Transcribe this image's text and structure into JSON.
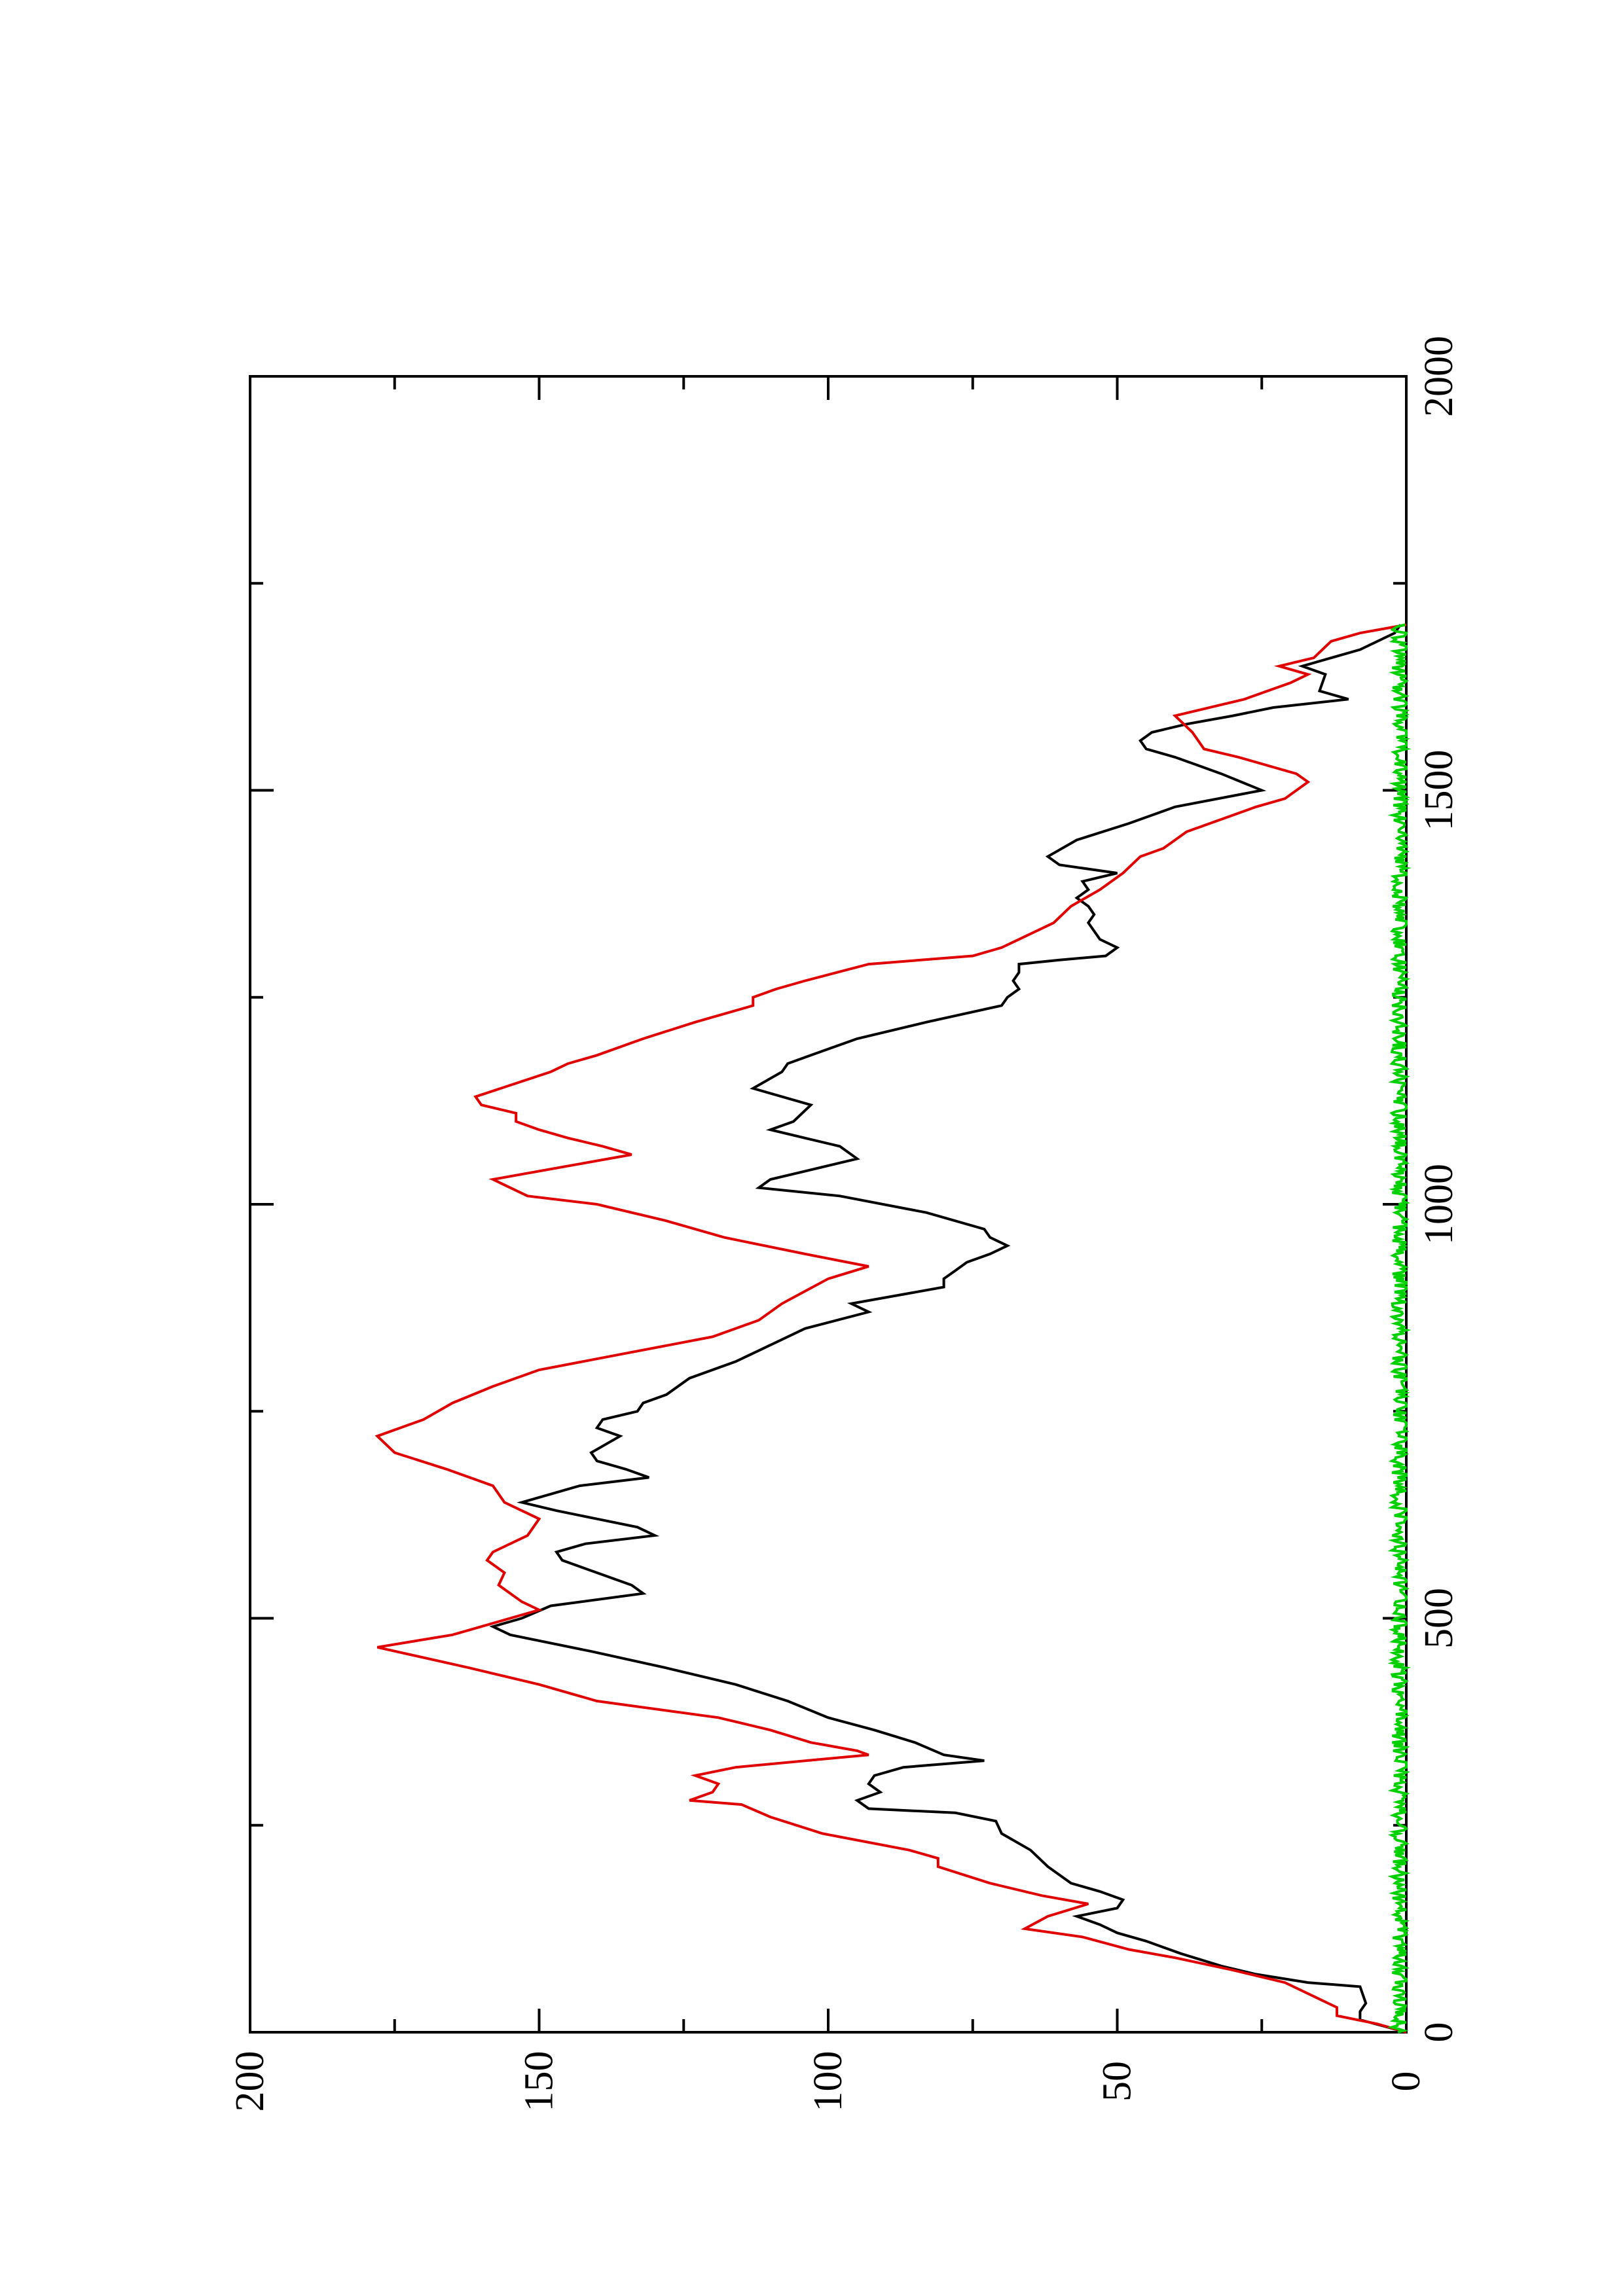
{
  "chart_data": {
    "type": "line",
    "orientation": "page rotated 90 degrees counter-clockwise",
    "title": "",
    "xlabel": "",
    "ylabel": "",
    "xlim": [
      0,
      2000
    ],
    "ylim": [
      0,
      200
    ],
    "x_ticks": [
      0,
      500,
      1000,
      1500,
      2000
    ],
    "x_tick_labels": [
      "0",
      "500",
      "1000",
      "1500",
      "2000"
    ],
    "y_ticks": [
      0,
      50,
      100,
      150,
      200
    ],
    "y_tick_labels": [
      "0",
      "50",
      "100",
      "150",
      "200"
    ],
    "grid": false,
    "legend": "none",
    "series": [
      {
        "color": "#000000",
        "points": [
          [
            0,
            0
          ],
          [
            15,
            8
          ],
          [
            25,
            8
          ],
          [
            35,
            7
          ],
          [
            55,
            8
          ],
          [
            60,
            17
          ],
          [
            70,
            26
          ],
          [
            80,
            32
          ],
          [
            95,
            39
          ],
          [
            110,
            45
          ],
          [
            120,
            50
          ],
          [
            130,
            53
          ],
          [
            140,
            57
          ],
          [
            150,
            50
          ],
          [
            160,
            49
          ],
          [
            170,
            53
          ],
          [
            180,
            58
          ],
          [
            200,
            62
          ],
          [
            220,
            65
          ],
          [
            240,
            70
          ],
          [
            255,
            71
          ],
          [
            265,
            78
          ],
          [
            270,
            93
          ],
          [
            280,
            95
          ],
          [
            290,
            91
          ],
          [
            300,
            93
          ],
          [
            310,
            92
          ],
          [
            320,
            87
          ],
          [
            328,
            73
          ],
          [
            335,
            80
          ],
          [
            350,
            85
          ],
          [
            365,
            92
          ],
          [
            380,
            100
          ],
          [
            400,
            107
          ],
          [
            420,
            116
          ],
          [
            440,
            128
          ],
          [
            460,
            141
          ],
          [
            480,
            155
          ],
          [
            490,
            158
          ],
          [
            500,
            153
          ],
          [
            515,
            148
          ],
          [
            530,
            132
          ],
          [
            540,
            134
          ],
          [
            550,
            138
          ],
          [
            560,
            142
          ],
          [
            570,
            146
          ],
          [
            580,
            147
          ],
          [
            590,
            142
          ],
          [
            600,
            130
          ],
          [
            610,
            133
          ],
          [
            620,
            140
          ],
          [
            630,
            147
          ],
          [
            640,
            153
          ],
          [
            650,
            148
          ],
          [
            660,
            143
          ],
          [
            670,
            131
          ],
          [
            680,
            135
          ],
          [
            690,
            140
          ],
          [
            700,
            141
          ],
          [
            720,
            136
          ],
          [
            730,
            140
          ],
          [
            740,
            139
          ],
          [
            750,
            133
          ],
          [
            760,
            132
          ],
          [
            770,
            128
          ],
          [
            790,
            124
          ],
          [
            810,
            116
          ],
          [
            830,
            110
          ],
          [
            850,
            104
          ],
          [
            870,
            93
          ],
          [
            880,
            96
          ],
          [
            900,
            80
          ],
          [
            910,
            80
          ],
          [
            920,
            78
          ],
          [
            930,
            76
          ],
          [
            940,
            72
          ],
          [
            950,
            69
          ],
          [
            960,
            72
          ],
          [
            970,
            73
          ],
          [
            990,
            83
          ],
          [
            1010,
            98
          ],
          [
            1020,
            112
          ],
          [
            1030,
            110
          ],
          [
            1040,
            104
          ],
          [
            1055,
            95
          ],
          [
            1070,
            98
          ],
          [
            1080,
            104
          ],
          [
            1090,
            110
          ],
          [
            1100,
            106
          ],
          [
            1120,
            103
          ],
          [
            1140,
            113
          ],
          [
            1160,
            108
          ],
          [
            1170,
            107
          ],
          [
            1180,
            103
          ],
          [
            1200,
            95
          ],
          [
            1220,
            83
          ],
          [
            1240,
            70
          ],
          [
            1250,
            69
          ],
          [
            1260,
            67
          ],
          [
            1270,
            68
          ],
          [
            1280,
            67
          ],
          [
            1290,
            67
          ],
          [
            1295,
            60
          ],
          [
            1300,
            52
          ],
          [
            1310,
            50
          ],
          [
            1320,
            53
          ],
          [
            1330,
            54
          ],
          [
            1340,
            55
          ],
          [
            1350,
            54
          ],
          [
            1360,
            55
          ],
          [
            1370,
            57
          ],
          [
            1380,
            55
          ],
          [
            1390,
            56
          ],
          [
            1400,
            50
          ],
          [
            1410,
            60
          ],
          [
            1420,
            62
          ],
          [
            1440,
            57
          ],
          [
            1460,
            48
          ],
          [
            1480,
            40
          ],
          [
            1500,
            25
          ],
          [
            1520,
            32
          ],
          [
            1530,
            36
          ],
          [
            1540,
            40
          ],
          [
            1550,
            45
          ],
          [
            1560,
            46
          ],
          [
            1570,
            44
          ],
          [
            1580,
            38
          ],
          [
            1590,
            30
          ],
          [
            1600,
            23
          ],
          [
            1610,
            10
          ],
          [
            1620,
            15
          ],
          [
            1640,
            14
          ],
          [
            1650,
            18
          ],
          [
            1670,
            8
          ],
          [
            1690,
            2
          ],
          [
            1700,
            1
          ]
        ]
      },
      {
        "color": "#e00000",
        "points": [
          [
            0,
            0
          ],
          [
            10,
            5
          ],
          [
            20,
            12
          ],
          [
            30,
            12
          ],
          [
            40,
            15
          ],
          [
            60,
            21
          ],
          [
            75,
            30
          ],
          [
            90,
            40
          ],
          [
            100,
            48
          ],
          [
            115,
            56
          ],
          [
            125,
            66
          ],
          [
            140,
            62
          ],
          [
            155,
            55
          ],
          [
            165,
            63
          ],
          [
            180,
            72
          ],
          [
            200,
            81
          ],
          [
            210,
            81
          ],
          [
            220,
            86
          ],
          [
            240,
            101
          ],
          [
            260,
            110
          ],
          [
            275,
            115
          ],
          [
            280,
            124
          ],
          [
            290,
            120
          ],
          [
            300,
            119
          ],
          [
            310,
            123
          ],
          [
            320,
            116
          ],
          [
            335,
            93
          ],
          [
            340,
            95
          ],
          [
            350,
            103
          ],
          [
            365,
            110
          ],
          [
            380,
            119
          ],
          [
            400,
            140
          ],
          [
            420,
            150
          ],
          [
            440,
            162
          ],
          [
            465,
            178
          ],
          [
            480,
            165
          ],
          [
            490,
            160
          ],
          [
            510,
            150
          ],
          [
            520,
            153
          ],
          [
            540,
            157
          ],
          [
            555,
            156
          ],
          [
            570,
            159
          ],
          [
            580,
            158
          ],
          [
            600,
            152
          ],
          [
            620,
            150
          ],
          [
            640,
            156
          ],
          [
            660,
            158
          ],
          [
            680,
            166
          ],
          [
            700,
            175
          ],
          [
            720,
            178
          ],
          [
            740,
            170
          ],
          [
            760,
            165
          ],
          [
            780,
            158
          ],
          [
            800,
            150
          ],
          [
            820,
            135
          ],
          [
            840,
            120
          ],
          [
            860,
            112
          ],
          [
            880,
            108
          ],
          [
            895,
            104
          ],
          [
            910,
            100
          ],
          [
            925,
            93
          ],
          [
            940,
            104
          ],
          [
            960,
            118
          ],
          [
            980,
            128
          ],
          [
            1000,
            140
          ],
          [
            1010,
            152
          ],
          [
            1030,
            158
          ],
          [
            1060,
            134
          ],
          [
            1070,
            139
          ],
          [
            1080,
            145
          ],
          [
            1090,
            150
          ],
          [
            1100,
            154
          ],
          [
            1110,
            154
          ],
          [
            1120,
            160
          ],
          [
            1130,
            161
          ],
          [
            1160,
            148
          ],
          [
            1170,
            145
          ],
          [
            1180,
            140
          ],
          [
            1200,
            132
          ],
          [
            1220,
            123
          ],
          [
            1240,
            113
          ],
          [
            1250,
            113
          ],
          [
            1260,
            109
          ],
          [
            1270,
            104
          ],
          [
            1290,
            93
          ],
          [
            1300,
            75
          ],
          [
            1310,
            70
          ],
          [
            1320,
            67
          ],
          [
            1340,
            61
          ],
          [
            1360,
            58
          ],
          [
            1380,
            53
          ],
          [
            1400,
            49
          ],
          [
            1420,
            46
          ],
          [
            1430,
            42
          ],
          [
            1450,
            38
          ],
          [
            1470,
            30
          ],
          [
            1480,
            26
          ],
          [
            1490,
            21
          ],
          [
            1510,
            17
          ],
          [
            1520,
            19
          ],
          [
            1540,
            29
          ],
          [
            1550,
            35
          ],
          [
            1570,
            37
          ],
          [
            1590,
            40
          ],
          [
            1610,
            28
          ],
          [
            1630,
            20
          ],
          [
            1640,
            17
          ],
          [
            1650,
            22
          ],
          [
            1660,
            16
          ],
          [
            1680,
            13
          ],
          [
            1690,
            8
          ],
          [
            1700,
            0
          ]
        ]
      },
      {
        "color": "#00d000",
        "noise_amplitude": 1.5,
        "x_range": [
          0,
          1700
        ],
        "mean": 1
      }
    ]
  }
}
